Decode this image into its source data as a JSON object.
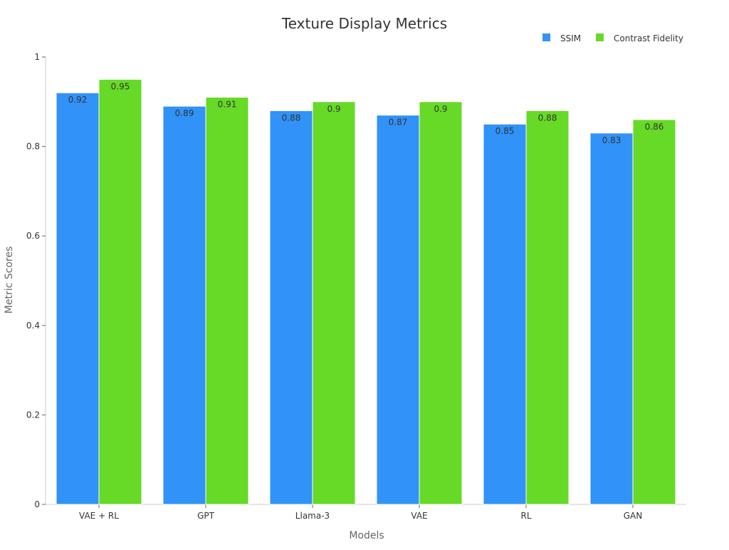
{
  "chart_data": {
    "type": "bar",
    "title": "Texture Display Metrics",
    "xlabel": "Models",
    "ylabel": "Metric Scores",
    "categories": [
      "VAE + RL",
      "GPT",
      "Llama-3",
      "VAE",
      "RL",
      "GAN"
    ],
    "series": [
      {
        "name": "SSIM",
        "values": [
          0.92,
          0.89,
          0.88,
          0.87,
          0.85,
          0.83
        ],
        "color": "#3192f7"
      },
      {
        "name": "Contrast Fidelity",
        "values": [
          0.95,
          0.91,
          0.9,
          0.9,
          0.88,
          0.86
        ],
        "color": "#66da26"
      }
    ],
    "ylim": [
      0,
      1
    ],
    "yticks": [
      0,
      0.2,
      0.4,
      0.6,
      0.8,
      1
    ],
    "ytick_labels": [
      "0",
      "0.2",
      "0.4",
      "0.6",
      "0.8",
      "1"
    ],
    "grid": false,
    "legend_position": "top-right",
    "data_labels": true
  }
}
